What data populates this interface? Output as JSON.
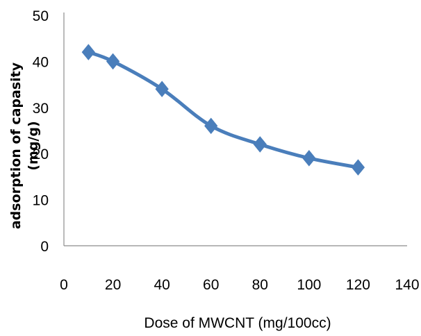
{
  "chart_data": {
    "type": "line",
    "title": "",
    "xlabel": "Dose of MWCNT (mg/100cc)",
    "ylabel_lines": [
      "adsorption of capasity",
      "(mg/g)"
    ],
    "x": [
      10,
      20,
      40,
      60,
      80,
      100,
      120
    ],
    "series": [
      {
        "values": [
          42,
          40,
          34,
          26,
          22,
          19,
          17
        ],
        "color": "#4a7ebb",
        "marker": "diamond",
        "smooth": true
      }
    ],
    "xlim": [
      0,
      140
    ],
    "ylim": [
      0,
      50
    ],
    "xticks": [
      "0",
      "20",
      "40",
      "60",
      "80",
      "100",
      "120",
      "140"
    ],
    "yticks": [
      "0",
      "10",
      "20",
      "30",
      "40",
      "50"
    ],
    "grid": false,
    "legend": "none"
  }
}
